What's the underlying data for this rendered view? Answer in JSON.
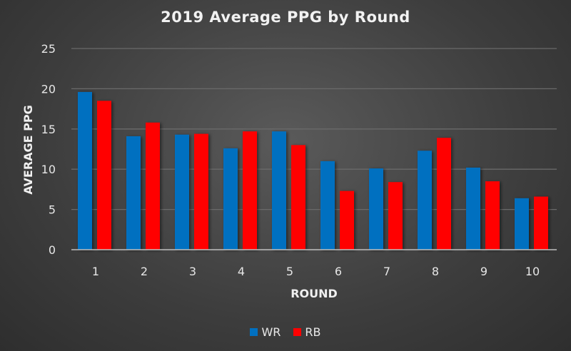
{
  "chart_data": {
    "type": "bar",
    "title": "2019 Average PPG by Round",
    "xlabel": "ROUND",
    "ylabel": "AVERAGE PPG",
    "ylim": [
      0,
      25
    ],
    "yticks": [
      "0",
      "5",
      "10",
      "15",
      "20",
      "25"
    ],
    "categories": [
      "1",
      "2",
      "3",
      "4",
      "5",
      "6",
      "7",
      "8",
      "9",
      "10"
    ],
    "grid": true,
    "legend_position": "bottom",
    "series": [
      {
        "name": "WR",
        "color": "#0070c0",
        "values": [
          19.6,
          14.1,
          14.3,
          12.6,
          14.7,
          11.0,
          10.1,
          12.3,
          10.2,
          6.4
        ]
      },
      {
        "name": "RB",
        "color": "#ff0000",
        "values": [
          18.5,
          15.8,
          14.4,
          14.7,
          13.0,
          7.3,
          8.4,
          13.9,
          8.5,
          6.6
        ]
      }
    ]
  }
}
